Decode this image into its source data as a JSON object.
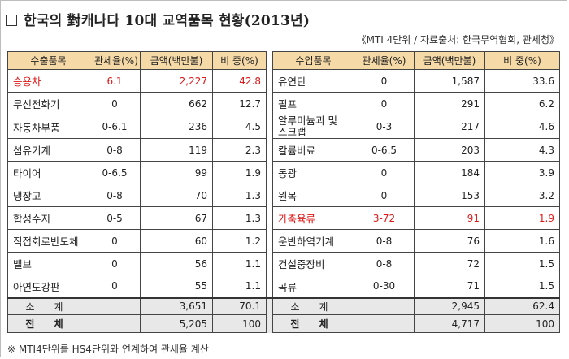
{
  "title": "한국의 對캐나다 10대 교역품목 현황(2013년)",
  "source": "《MTI 4단위 / 자료출처: 한국무역협회, 관세청》",
  "export_headers": [
    "수출품목",
    "관세율(%)",
    "금액(백만불)",
    "비 중(%)"
  ],
  "import_headers": [
    "수입품목",
    "관세율(%)",
    "금액(백만불)",
    "비 중(%)"
  ],
  "rows": [
    {
      "ex_item": "승용차",
      "ex_tariff": "6.1",
      "ex_amount": "2,227",
      "ex_share": "42.8",
      "im_item": "유연탄",
      "im_tariff": "0",
      "im_amount": "1,587",
      "im_share": "33.6"
    },
    {
      "ex_item": "무선전화기",
      "ex_tariff": "0",
      "ex_amount": "662",
      "ex_share": "12.7",
      "im_item": "펄프",
      "im_tariff": "0",
      "im_amount": "291",
      "im_share": "6.2"
    },
    {
      "ex_item": "자동차부품",
      "ex_tariff": "0-6.1",
      "ex_amount": "236",
      "ex_share": "4.5",
      "im_item": "알루미늄괴 및 스크랩",
      "im_tariff": "0-3",
      "im_amount": "217",
      "im_share": "4.6"
    },
    {
      "ex_item": "섬유기계",
      "ex_tariff": "0-8",
      "ex_amount": "119",
      "ex_share": "2.3",
      "im_item": "칼륨비료",
      "im_tariff": "0-6.5",
      "im_amount": "203",
      "im_share": "4.3"
    },
    {
      "ex_item": "타이어",
      "ex_tariff": "0-6.5",
      "ex_amount": "99",
      "ex_share": "1.9",
      "im_item": "동광",
      "im_tariff": "0",
      "im_amount": "184",
      "im_share": "3.9"
    },
    {
      "ex_item": "냉장고",
      "ex_tariff": "0-8",
      "ex_amount": "70",
      "ex_share": "1.3",
      "im_item": "원목",
      "im_tariff": "0",
      "im_amount": "153",
      "im_share": "3.2"
    },
    {
      "ex_item": "합성수지",
      "ex_tariff": "0-5",
      "ex_amount": "67",
      "ex_share": "1.3",
      "im_item": "가축육류",
      "im_tariff": "3-72",
      "im_amount": "91",
      "im_share": "1.9"
    },
    {
      "ex_item": "직접회로반도체",
      "ex_tariff": "0",
      "ex_amount": "60",
      "ex_share": "1.2",
      "im_item": "운반하역기계",
      "im_tariff": "0-8",
      "im_amount": "76",
      "im_share": "1.6"
    },
    {
      "ex_item": "밸브",
      "ex_tariff": "0",
      "ex_amount": "56",
      "ex_share": "1.1",
      "im_item": "건설중장비",
      "im_tariff": "0-8",
      "im_amount": "72",
      "im_share": "1.5"
    },
    {
      "ex_item": "아연도강판",
      "ex_tariff": "0",
      "ex_amount": "55",
      "ex_share": "1.1",
      "im_item": "곡류",
      "im_tariff": "0-30",
      "im_amount": "71",
      "im_share": "1.5"
    }
  ],
  "subtotal": {
    "label": "소 계",
    "ex_amount": "3,651",
    "ex_share": "70.1",
    "im_amount": "2,945",
    "im_share": "62.4"
  },
  "total": {
    "label": "전 체",
    "ex_amount": "5,205",
    "ex_share": "100",
    "im_amount": "4,717",
    "im_share": "100"
  },
  "note": "※ MTI4단위를 HS4단위와 연계하여 관세율 계산",
  "highlight_color": "#e01818",
  "header_color": "#f5d9a6"
}
